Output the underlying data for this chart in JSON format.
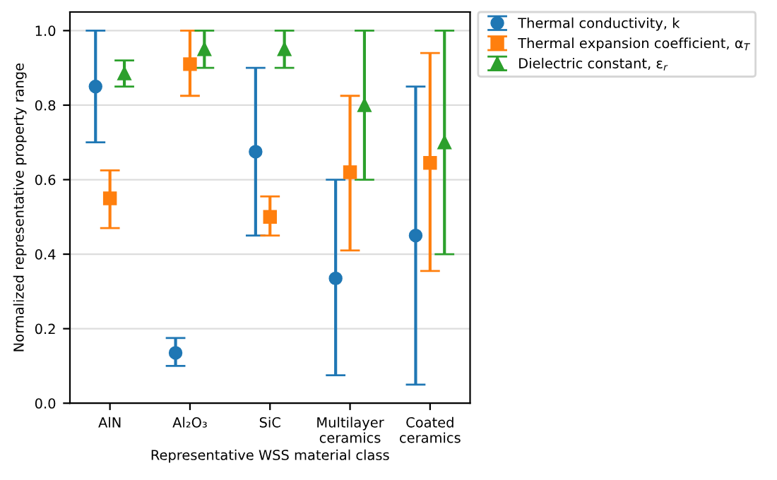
{
  "chart_data": {
    "type": "scatter",
    "xlabel": "Representative WSS material class",
    "ylabel": "Normalized representative property range",
    "categories": [
      "AlN",
      "Al₂O₃",
      "SiC",
      "Multilayer\nceramics",
      "Coated\nceramics"
    ],
    "series": [
      {
        "name": "Thermal conductivity, k",
        "color": "#1f77b4",
        "marker": "circle",
        "values": [
          0.85,
          0.135,
          0.675,
          0.335,
          0.45
        ],
        "errors": [
          [
            0.7,
            1.0
          ],
          [
            0.1,
            0.175
          ],
          [
            0.45,
            0.9
          ],
          [
            0.075,
            0.6
          ],
          [
            0.05,
            0.85
          ]
        ]
      },
      {
        "name": "Thermal expansion coefficient, α$_{T}$",
        "color": "#ff7f0e",
        "marker": "square",
        "values": [
          0.55,
          0.91,
          0.5,
          0.62,
          0.645
        ],
        "errors": [
          [
            0.47,
            0.625
          ],
          [
            0.825,
            1.0
          ],
          [
            0.45,
            0.555
          ],
          [
            0.41,
            0.825
          ],
          [
            0.355,
            0.94
          ]
        ]
      },
      {
        "name": "Dielectric constant, ε$_{r}$",
        "color": "#2ca02c",
        "marker": "triangle",
        "values": [
          0.885,
          0.95,
          0.95,
          0.8,
          0.7
        ],
        "errors": [
          [
            0.85,
            0.92
          ],
          [
            0.9,
            1.0
          ],
          [
            0.9,
            1.0
          ],
          [
            0.6,
            1.0
          ],
          [
            0.4,
            1.0
          ]
        ]
      }
    ],
    "ylim": [
      0,
      1.05
    ],
    "yticks": [
      {
        "value": 0,
        "label": "0.0"
      },
      0.2,
      0.4,
      0.6,
      0.8,
      {
        "value": 1,
        "label": "1.0"
      }
    ],
    "grid": "y",
    "legend": "top right"
  }
}
